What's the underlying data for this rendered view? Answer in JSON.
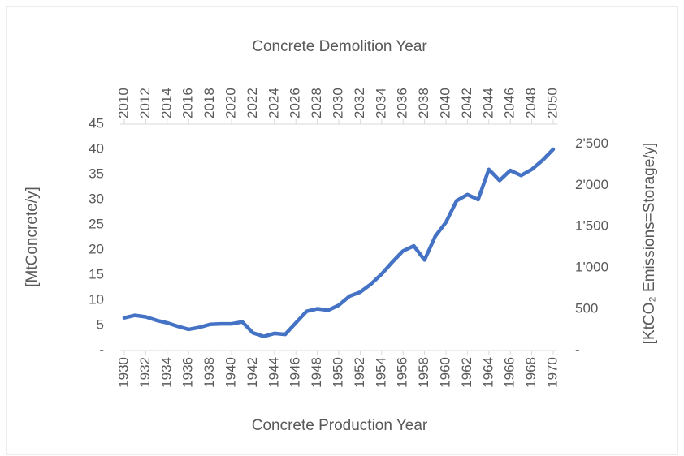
{
  "chart_data": {
    "type": "line",
    "title": "Concrete Demolition Year",
    "xlabel": "Concrete Production Year",
    "ylabel": "[MtConcrete/y]",
    "y2label": "[KtCO₂ Emissions=Storage/y]",
    "x": [
      1930,
      1931,
      1932,
      1933,
      1934,
      1935,
      1936,
      1937,
      1938,
      1939,
      1940,
      1941,
      1942,
      1943,
      1944,
      1945,
      1946,
      1947,
      1948,
      1949,
      1950,
      1951,
      1952,
      1953,
      1954,
      1955,
      1956,
      1957,
      1958,
      1959,
      1960,
      1961,
      1962,
      1963,
      1964,
      1965,
      1966,
      1967,
      1968,
      1969,
      1970
    ],
    "series": [
      {
        "color": "#4472c4",
        "values": [
          6.5,
          7,
          6.7,
          6,
          5.5,
          4.8,
          4.2,
          4.6,
          5.2,
          5.3,
          5.3,
          5.7,
          3.5,
          2.8,
          3.4,
          3.2,
          5.5,
          7.8,
          8.3,
          8.0,
          9.0,
          10.8,
          11.6,
          13.2,
          15.2,
          17.6,
          19.8,
          20.8,
          18.0,
          22.7,
          25.5,
          29.8,
          31.0,
          30.0,
          36.0,
          33.8,
          35.8,
          34.8,
          36.0,
          37.8,
          40
        ]
      }
    ],
    "xlim": [
      1930,
      1970
    ],
    "xticks": [
      1930,
      1932,
      1934,
      1936,
      1938,
      1940,
      1942,
      1944,
      1946,
      1948,
      1950,
      1952,
      1954,
      1956,
      1958,
      1960,
      1962,
      1964,
      1966,
      1968,
      1970
    ],
    "x2lim": [
      2010,
      2050
    ],
    "x2ticks": [
      2010,
      2012,
      2014,
      2016,
      2018,
      2020,
      2022,
      2024,
      2026,
      2028,
      2030,
      2032,
      2034,
      2036,
      2038,
      2040,
      2042,
      2044,
      2046,
      2048,
      2050
    ],
    "ylim": [
      0,
      45
    ],
    "yticks": [
      {
        "value": 0,
        "label": "-"
      },
      5,
      10,
      15,
      20,
      25,
      30,
      35,
      40,
      45
    ],
    "y2lim": [
      0,
      2740
    ],
    "y2ticks": [
      {
        "value": 0,
        "label": "-"
      },
      500,
      {
        "value": 1000,
        "label": "1'000"
      },
      {
        "value": 1500,
        "label": "1'500"
      },
      {
        "value": 2000,
        "label": "2'000"
      },
      {
        "value": 2500,
        "label": "2'500"
      }
    ],
    "grid": false
  }
}
